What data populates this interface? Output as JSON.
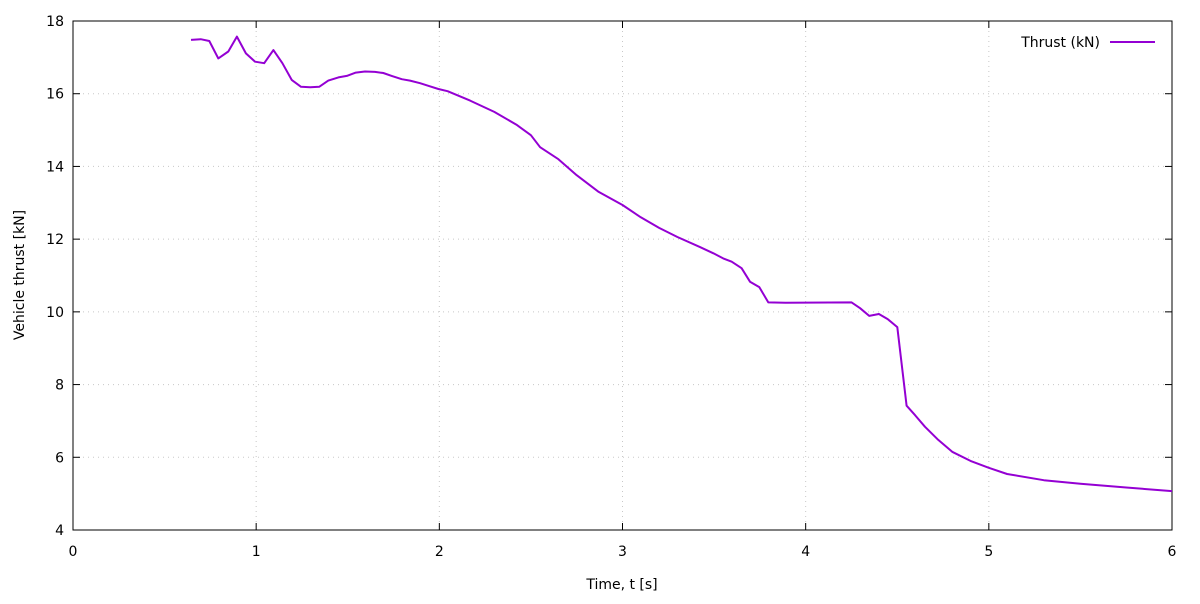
{
  "chart_data": {
    "type": "line",
    "title": "",
    "xlabel": "Time, t [s]",
    "ylabel": "Vehicle thrust [kN]",
    "xlim": [
      0,
      6
    ],
    "ylim": [
      4,
      18
    ],
    "xticks": [
      0,
      1,
      2,
      3,
      4,
      5,
      6
    ],
    "yticks": [
      4,
      6,
      8,
      10,
      12,
      14,
      16,
      18
    ],
    "grid": true,
    "legend_position": "top-right",
    "series": [
      {
        "name": "Thrust (kN)",
        "color": "#9400d3",
        "x": [
          0.644,
          0.697,
          0.744,
          0.793,
          0.848,
          0.895,
          0.944,
          0.994,
          1.044,
          1.094,
          1.143,
          1.194,
          1.245,
          1.295,
          1.344,
          1.394,
          1.449,
          1.495,
          1.544,
          1.594,
          1.649,
          1.694,
          1.74,
          1.795,
          1.84,
          1.895,
          1.944,
          1.995,
          2.045,
          2.168,
          2.3,
          2.42,
          2.5,
          2.55,
          2.65,
          2.75,
          2.87,
          3.0,
          3.1,
          3.2,
          3.3,
          3.423,
          3.496,
          3.55,
          3.596,
          3.65,
          3.696,
          3.747,
          3.796,
          3.89,
          4.251,
          4.297,
          4.347,
          4.4,
          4.448,
          4.5,
          4.551,
          4.597,
          4.651,
          4.719,
          4.8,
          4.9,
          5.0,
          5.1,
          5.3,
          5.5,
          5.75,
          6.0
        ],
        "y": [
          17.48,
          17.5,
          17.45,
          16.97,
          17.16,
          17.57,
          17.11,
          16.88,
          16.84,
          17.2,
          16.84,
          16.38,
          16.19,
          16.18,
          16.19,
          16.36,
          16.45,
          16.49,
          16.58,
          16.61,
          16.6,
          16.57,
          16.49,
          16.4,
          16.36,
          16.29,
          16.21,
          16.13,
          16.07,
          15.81,
          15.5,
          15.15,
          14.86,
          14.53,
          14.2,
          13.76,
          13.3,
          12.94,
          12.6,
          12.31,
          12.06,
          11.78,
          11.61,
          11.47,
          11.38,
          11.2,
          10.83,
          10.68,
          10.26,
          10.25,
          10.26,
          10.1,
          9.89,
          9.94,
          9.8,
          9.58,
          7.42,
          7.16,
          6.84,
          6.5,
          6.15,
          5.9,
          5.71,
          5.54,
          5.37,
          5.27,
          5.17,
          5.07
        ]
      }
    ]
  }
}
